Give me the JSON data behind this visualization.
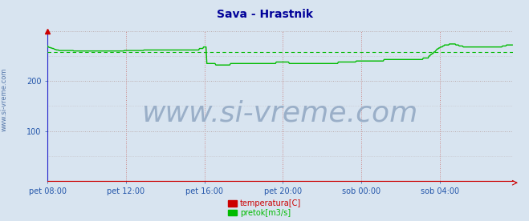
{
  "title": "Sava - Hrastnik",
  "title_color": "#000099",
  "title_fontsize": 10,
  "bg_color": "#d8e4f0",
  "plot_bg_color": "#d8e4f0",
  "axis_color": "#2222cc",
  "tick_color": "#2255aa",
  "ylim": [
    0,
    300
  ],
  "yticks": [
    100,
    200
  ],
  "xtick_labels": [
    "pet 08:00",
    "pet 12:00",
    "pet 16:00",
    "pet 20:00",
    "sob 00:00",
    "sob 04:00"
  ],
  "xtick_positions": [
    0,
    96,
    192,
    288,
    384,
    480
  ],
  "total_points": 576,
  "watermark": "www.si-vreme.com",
  "watermark_color": "#9aafc8",
  "watermark_fontsize": 26,
  "legend_labels": [
    "temperatura[C]",
    "pretok[m3/s]"
  ],
  "legend_colors": [
    "#cc0000",
    "#00bb00"
  ],
  "legend_text_color": "#2255aa",
  "vgrid_color": "#cc8888",
  "vgrid_style": ":",
  "hgrid_color": "#bbaaaa",
  "hgrid_style": ":",
  "avg_line_color": "#00bb00",
  "avg_line_style": "--",
  "avg_value": 258,
  "pretok_color": "#00bb00",
  "pretok_linewidth": 1.0,
  "temperatura_color": "#cc0000",
  "temperatura_linewidth": 0.8,
  "pretok_data": [
    270,
    268,
    267,
    267,
    266,
    266,
    265,
    265,
    264,
    263,
    263,
    262,
    262,
    262,
    261,
    261,
    261,
    261,
    261,
    261,
    261,
    261,
    261,
    261,
    261,
    261,
    261,
    261,
    261,
    261,
    261,
    261,
    260,
    260,
    260,
    260,
    260,
    260,
    260,
    260,
    260,
    260,
    260,
    260,
    260,
    260,
    260,
    260,
    260,
    260,
    260,
    260,
    260,
    260,
    260,
    260,
    260,
    260,
    260,
    260,
    260,
    260,
    260,
    260,
    260,
    260,
    260,
    260,
    260,
    260,
    260,
    260,
    260,
    260,
    260,
    260,
    260,
    260,
    260,
    260,
    260,
    260,
    260,
    260,
    260,
    260,
    260,
    260,
    260,
    260,
    260,
    260,
    260,
    260,
    261,
    261,
    261,
    261,
    261,
    261,
    261,
    261,
    261,
    261,
    261,
    261,
    261,
    261,
    261,
    261,
    261,
    261,
    261,
    261,
    261,
    261,
    261,
    261,
    262,
    262,
    262,
    262,
    262,
    262,
    262,
    262,
    262,
    262,
    262,
    262,
    262,
    262,
    262,
    262,
    262,
    262,
    262,
    262,
    262,
    262,
    262,
    262,
    262,
    262,
    262,
    262,
    262,
    262,
    262,
    262,
    262,
    262,
    262,
    262,
    262,
    262,
    262,
    262,
    262,
    262,
    262,
    262,
    262,
    262,
    262,
    262,
    262,
    262,
    262,
    262,
    262,
    262,
    262,
    262,
    262,
    262,
    262,
    262,
    262,
    262,
    262,
    262,
    262,
    262,
    262,
    262,
    265,
    265,
    265,
    265,
    265,
    268,
    268,
    268,
    268,
    235,
    235,
    235,
    235,
    235,
    235,
    235,
    235,
    235,
    235,
    235,
    232,
    232,
    232,
    232,
    232,
    232,
    232,
    232,
    232,
    232,
    232,
    232,
    232,
    232,
    232,
    232,
    232,
    232,
    235,
    235,
    235,
    235,
    235,
    235,
    235,
    235,
    235,
    235,
    235,
    235,
    235,
    235,
    235,
    235,
    235,
    235,
    235,
    235,
    235,
    235,
    235,
    235,
    235,
    235,
    235,
    235,
    235,
    235,
    235,
    235,
    235,
    235,
    235,
    235,
    235,
    235,
    235,
    235,
    235,
    235,
    235,
    235,
    235,
    235,
    235,
    235,
    235,
    235,
    235,
    235,
    235,
    235,
    235,
    235,
    238,
    238,
    238,
    238,
    238,
    238,
    238,
    238,
    238,
    238,
    238,
    238,
    238,
    238,
    238,
    238,
    235,
    235,
    235,
    235,
    235,
    235,
    235,
    235,
    235,
    235,
    235,
    235,
    235,
    235,
    235,
    235,
    235,
    235,
    235,
    235,
    235,
    235,
    235,
    235,
    235,
    235,
    235,
    235,
    235,
    235,
    235,
    235,
    235,
    235,
    235,
    235,
    235,
    235,
    235,
    235,
    235,
    235,
    235,
    235,
    235,
    235,
    235,
    235,
    235,
    235,
    235,
    235,
    235,
    235,
    235,
    235,
    235,
    235,
    235,
    235,
    238,
    238,
    238,
    238,
    238,
    238,
    238,
    238,
    238,
    238,
    238,
    238,
    238,
    238,
    238,
    238,
    238,
    238,
    238,
    238,
    238,
    238,
    240,
    240,
    240,
    240,
    240,
    240,
    240,
    240,
    240,
    240,
    240,
    240,
    240,
    240,
    240,
    240,
    240,
    240,
    240,
    240,
    240,
    240,
    240,
    240,
    240,
    240,
    240,
    240,
    240,
    240,
    240,
    240,
    240,
    240,
    243,
    243,
    243,
    243,
    243,
    243,
    243,
    243,
    243,
    243,
    243,
    243,
    243,
    243,
    243,
    243,
    243,
    243,
    243,
    243,
    243,
    243,
    243,
    243,
    243,
    243,
    243,
    243,
    243,
    243,
    243,
    243,
    243,
    243,
    243,
    243,
    243,
    243,
    243,
    243,
    243,
    243,
    243,
    243,
    243,
    243,
    243,
    243,
    246,
    246,
    246,
    246,
    246,
    246,
    246,
    250,
    250,
    253,
    253,
    255,
    255,
    258,
    258,
    260,
    262,
    264,
    264,
    266,
    266,
    268,
    268,
    268,
    270,
    270,
    272,
    272,
    272,
    272,
    272,
    272,
    274,
    274,
    274,
    274,
    274,
    274,
    274,
    274,
    272,
    272,
    272,
    272,
    270,
    270,
    270,
    270,
    270,
    268,
    268,
    268,
    268,
    268,
    268,
    268,
    268,
    268,
    268,
    268,
    268,
    268,
    268,
    268,
    268,
    268,
    268,
    268,
    268,
    268,
    268,
    268,
    268,
    268,
    268,
    268,
    268,
    268,
    268,
    268,
    268,
    268,
    268,
    268,
    268,
    268,
    268,
    268,
    268,
    268,
    268,
    268,
    268,
    268,
    268,
    268,
    268,
    270,
    270,
    270,
    270,
    270,
    272,
    272,
    272,
    272,
    272,
    272,
    272,
    272
  ],
  "sidebar_text": "www.si-vreme.com",
  "sidebar_color": "#5577aa",
  "sidebar_fontsize": 6
}
